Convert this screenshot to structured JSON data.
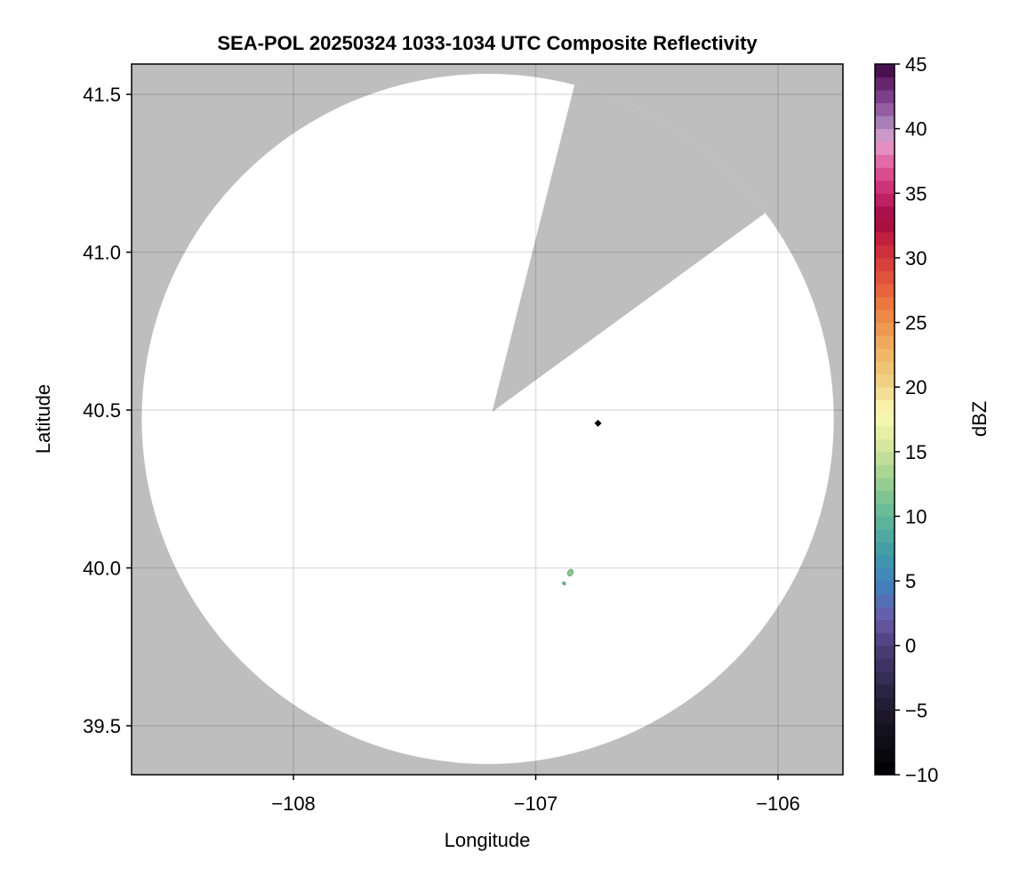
{
  "chart_data": {
    "type": "heatmap",
    "title": "SEA-POL 20250324 1033-1034 UTC Composite Reflectivity",
    "xlabel": "Longitude",
    "ylabel": "Latitude",
    "xlim": [
      -108.668,
      -105.732
    ],
    "ylim": [
      39.345,
      41.596
    ],
    "xticks": [
      -108,
      -107,
      -106
    ],
    "xtick_labels": [
      "−108",
      "−107",
      "−106"
    ],
    "yticks": [
      39.5,
      40.0,
      40.5,
      41.0,
      41.5
    ],
    "ytick_labels": [
      "39.5",
      "40.0",
      "40.5",
      "41.0",
      "41.5"
    ],
    "grid": true,
    "background_color": "#bebebe",
    "coverage": {
      "center_lon": -107.198,
      "center_lat": 40.472,
      "radius_lon_deg": 1.428,
      "radius_lat_deg": 1.093,
      "color": "#ffffff",
      "blocked_sector": [
        [
          -107.18,
          40.494
        ],
        [
          -106.84,
          41.53
        ],
        [
          -106.06,
          41.12
        ]
      ]
    },
    "marker": {
      "shape": "diamond",
      "lon": -106.743,
      "lat": 40.458,
      "color": "#000000"
    },
    "echoes": [
      {
        "lon": -106.857,
        "lat": 39.985,
        "dbz": 12
      },
      {
        "lon": -106.883,
        "lat": 39.951,
        "dbz": 10
      }
    ],
    "colorbar": {
      "label": "dBZ",
      "range": [
        -10,
        45
      ],
      "ticks": [
        -10,
        -5,
        0,
        5,
        10,
        15,
        20,
        25,
        30,
        35,
        40,
        45
      ],
      "tick_labels": [
        "−10",
        "−5",
        "0",
        "5",
        "10",
        "15",
        "20",
        "25",
        "30",
        "35",
        "40",
        "45"
      ],
      "bin_size": 1,
      "stops": [
        [
          -10,
          "#000000"
        ],
        [
          -5,
          "#1e1a2e"
        ],
        [
          0,
          "#4a3f7a"
        ],
        [
          2,
          "#6a5aa8"
        ],
        [
          5,
          "#3f84c0"
        ],
        [
          7,
          "#3f9aa8"
        ],
        [
          10,
          "#5fb898"
        ],
        [
          13,
          "#a0d090"
        ],
        [
          16,
          "#e0eca0"
        ],
        [
          18,
          "#fbf9b5"
        ],
        [
          20,
          "#f0d88a"
        ],
        [
          23,
          "#f0b060"
        ],
        [
          26,
          "#ee8040"
        ],
        [
          28,
          "#e45a3c"
        ],
        [
          31,
          "#c8283c"
        ],
        [
          33,
          "#a00840"
        ],
        [
          35,
          "#c82870"
        ],
        [
          37,
          "#e05898"
        ],
        [
          39,
          "#e8a0d0"
        ],
        [
          40,
          "#b090c0"
        ],
        [
          42,
          "#8a4a98"
        ],
        [
          44,
          "#5a1a60"
        ],
        [
          45,
          "#3a0840"
        ]
      ]
    }
  }
}
